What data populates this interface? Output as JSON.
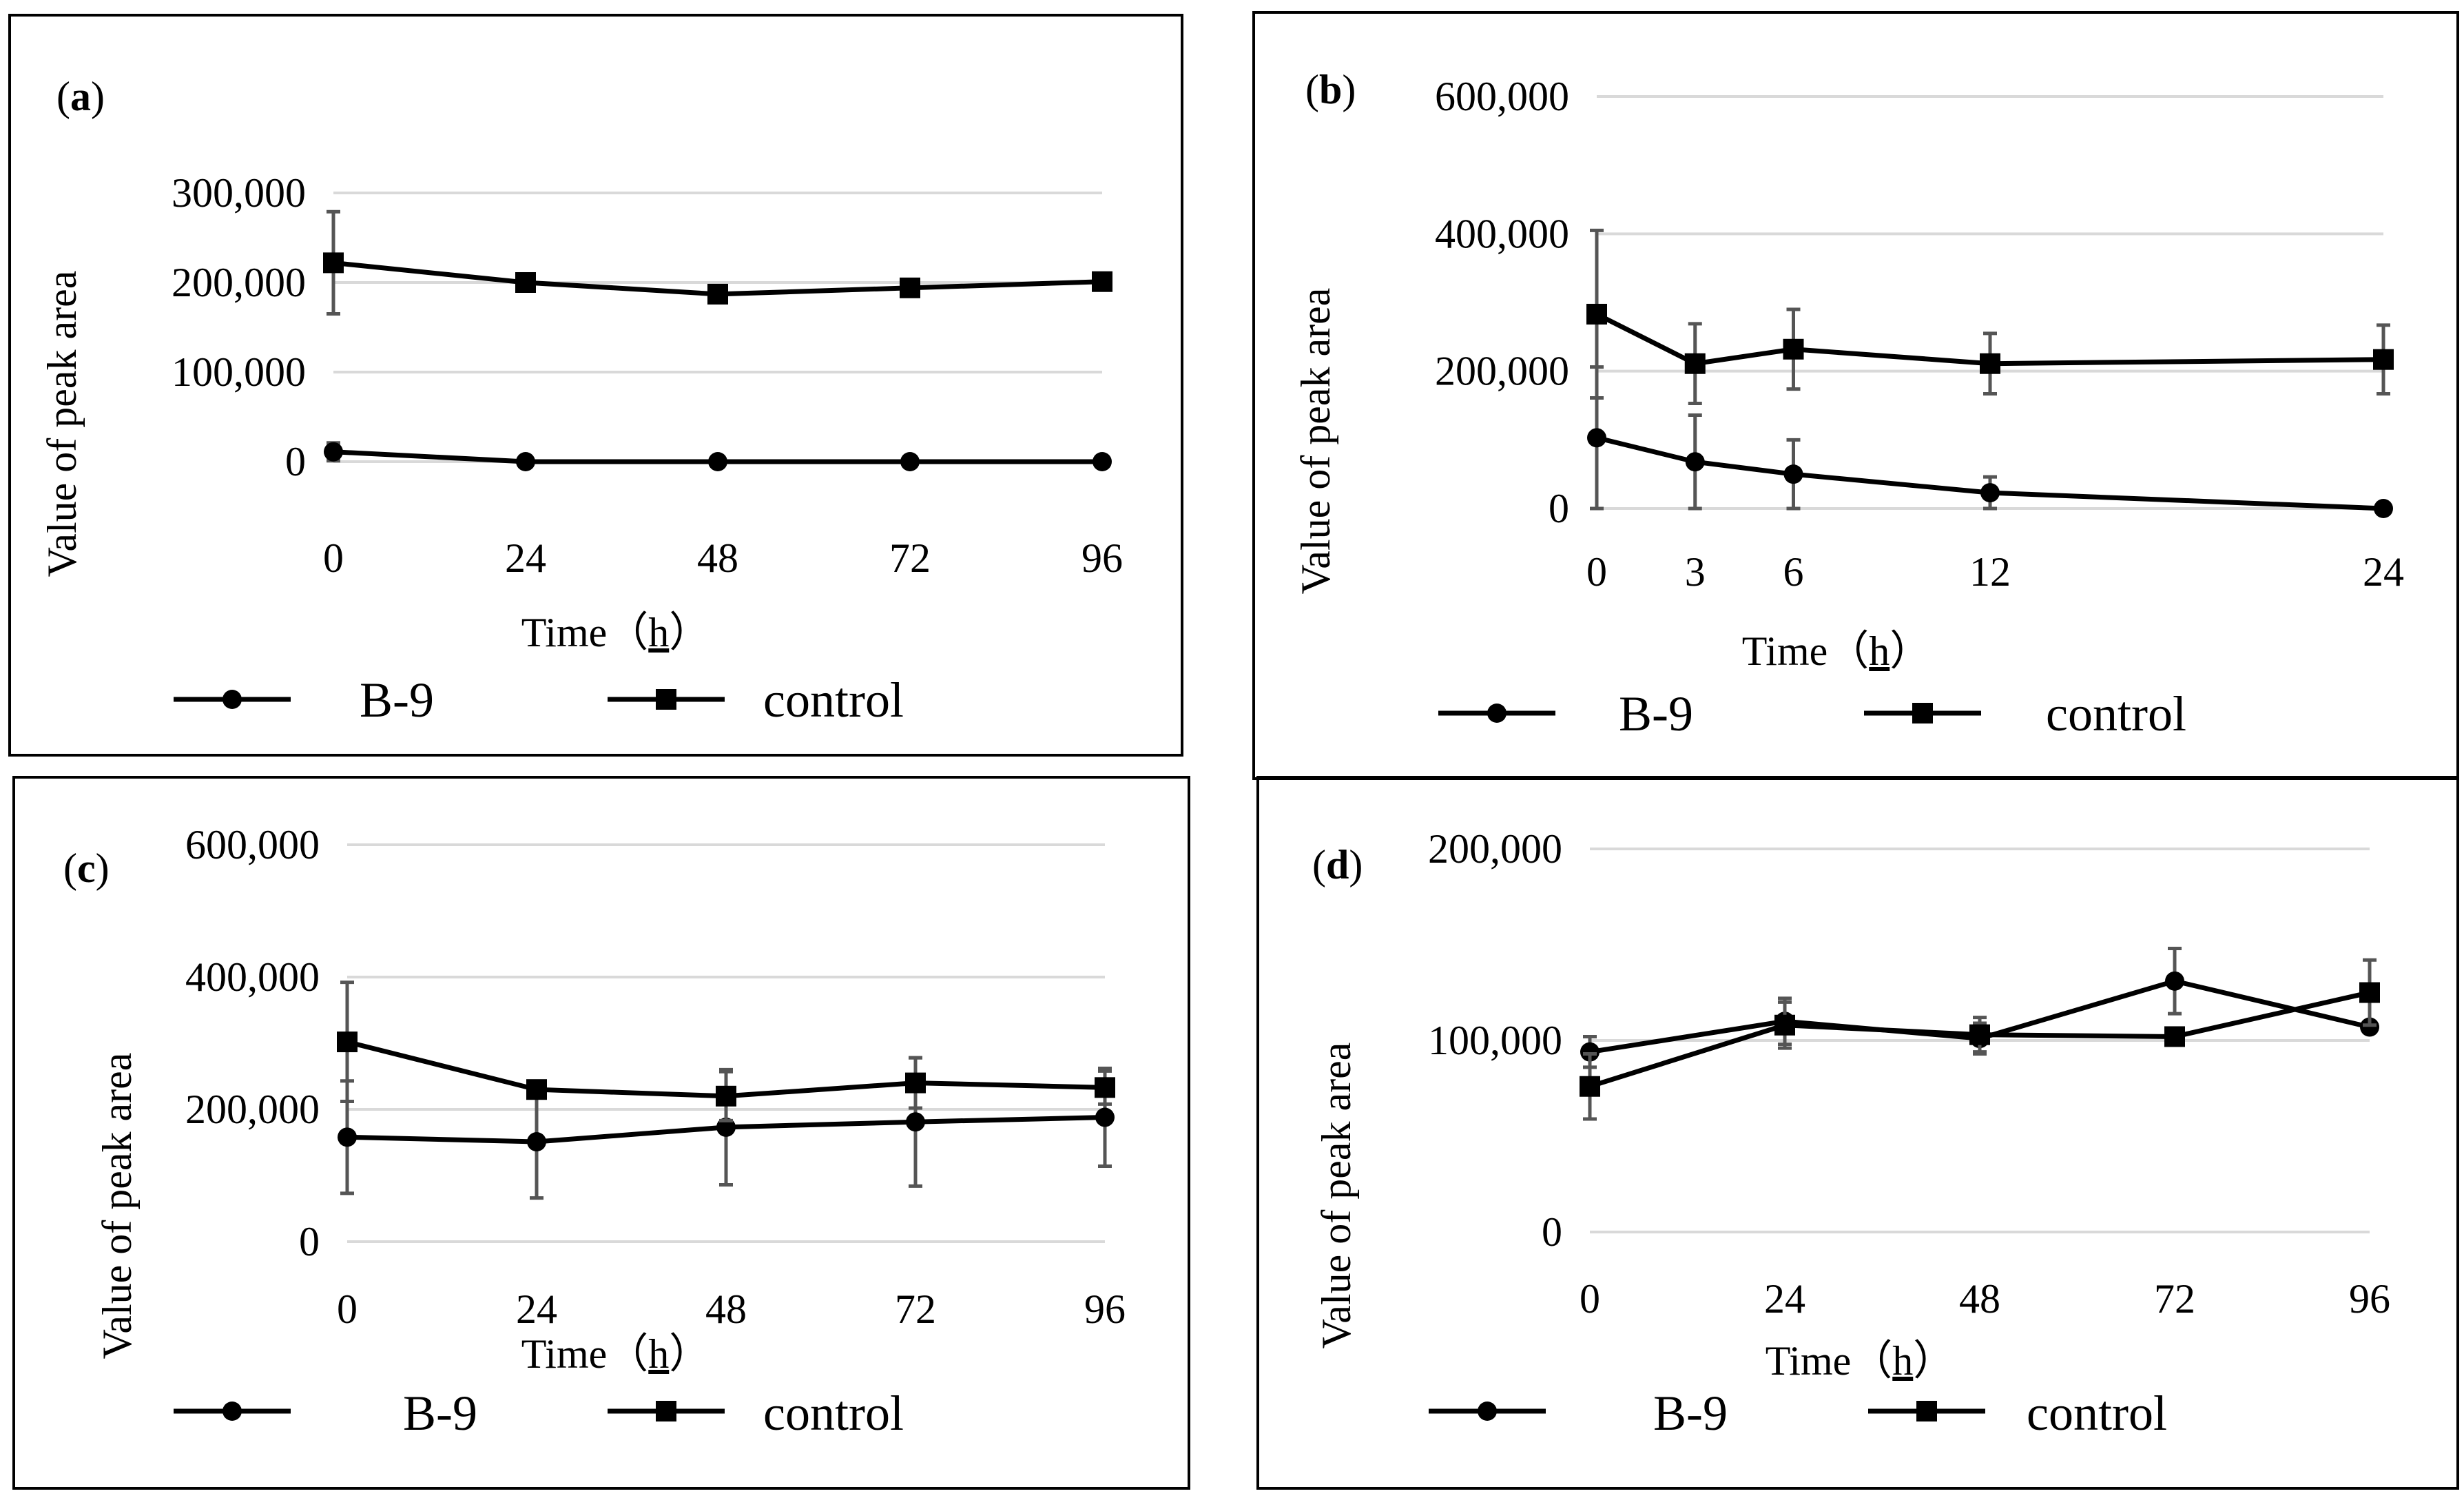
{
  "figure": {
    "chart_data": [
      {
        "type": "line",
        "panel_label": "a",
        "ylabel": "Value of peak area",
        "xlabel": "Time",
        "xunit": "h",
        "x": [
          0,
          24,
          48,
          72,
          96
        ],
        "x_tick_labels": [
          "0",
          "24",
          "48",
          "72",
          "96"
        ],
        "ylim": [
          0,
          300000
        ],
        "y_ticks": [
          0,
          100000,
          200000,
          300000
        ],
        "y_tick_labels": [
          "0",
          "100,000",
          "200,000",
          "300,000"
        ],
        "grid": true,
        "legend_position": "bottom",
        "series": [
          {
            "name": "B-9",
            "marker": "circle",
            "values": [
              11000,
              0,
              0,
              0,
              0
            ],
            "errors": [
              10000,
              0,
              0,
              0,
              0
            ]
          },
          {
            "name": "control",
            "marker": "square",
            "values": [
              222000,
              200000,
              187000,
              194000,
              201000
            ],
            "errors": [
              57000,
              0,
              0,
              0,
              0
            ]
          }
        ]
      },
      {
        "type": "line",
        "panel_label": "b",
        "ylabel": "Value of peak area",
        "xlabel": "Time",
        "xunit": "h",
        "x": [
          0,
          3,
          6,
          12,
          24
        ],
        "x_tick_labels": [
          "0",
          "3",
          "6",
          "12",
          "24"
        ],
        "ylim": [
          0,
          600000
        ],
        "y_ticks": [
          0,
          200000,
          400000,
          600000
        ],
        "y_tick_labels": [
          "0",
          "200,000",
          "400,000",
          "600,000"
        ],
        "grid": true,
        "legend_position": "bottom",
        "series": [
          {
            "name": "B-9",
            "marker": "circle",
            "values": [
              103000,
              68000,
              50000,
              23000,
              0
            ],
            "errors": [
              103000,
              68000,
              50000,
              23000,
              0
            ]
          },
          {
            "name": "control",
            "marker": "square",
            "values": [
              283000,
              211000,
              232000,
              211000,
              217000
            ],
            "errors": [
              122000,
              58000,
              58000,
              44000,
              50000
            ]
          }
        ]
      },
      {
        "type": "line",
        "panel_label": "c",
        "ylabel": "Value of peak area",
        "xlabel": "Time",
        "xunit": "h",
        "x": [
          0,
          24,
          48,
          72,
          96
        ],
        "x_tick_labels": [
          "0",
          "24",
          "48",
          "72",
          "96"
        ],
        "ylim": [
          0,
          600000
        ],
        "y_ticks": [
          0,
          200000,
          400000,
          600000
        ],
        "y_tick_labels": [
          "0",
          "200,000",
          "400,000",
          "600,000"
        ],
        "grid": true,
        "legend_position": "bottom",
        "series": [
          {
            "name": "B-9",
            "marker": "circle",
            "values": [
              158000,
              151000,
              173000,
              181000,
              188000
            ],
            "errors": [
              85000,
              85000,
              87000,
              97000,
              74000
            ]
          },
          {
            "name": "control",
            "marker": "square",
            "values": [
              302000,
              230000,
              220000,
              240000,
              233000
            ],
            "errors": [
              90000,
              0,
              37000,
              38000,
              25000
            ]
          }
        ]
      },
      {
        "type": "line",
        "panel_label": "d",
        "ylabel": "Value of peak area",
        "xlabel": "Time",
        "xunit": "h",
        "x": [
          0,
          24,
          48,
          72,
          96
        ],
        "x_tick_labels": [
          "0",
          "24",
          "48",
          "72",
          "96"
        ],
        "ylim": [
          0,
          200000
        ],
        "y_ticks": [
          0,
          100000,
          200000
        ],
        "y_tick_labels": [
          "0",
          "100,000",
          "200,000"
        ],
        "grid": true,
        "legend_position": "bottom",
        "series": [
          {
            "name": "B-9",
            "marker": "circle",
            "values": [
              94000,
              110000,
              101000,
              131000,
              107000
            ],
            "errors": [
              8000,
              12000,
              8000,
              17000,
              0
            ]
          },
          {
            "name": "control",
            "marker": "square",
            "values": [
              76000,
              108000,
              103000,
              102000,
              125000
            ],
            "errors": [
              17000,
              12000,
              9000,
              0,
              17000
            ]
          }
        ]
      }
    ]
  }
}
